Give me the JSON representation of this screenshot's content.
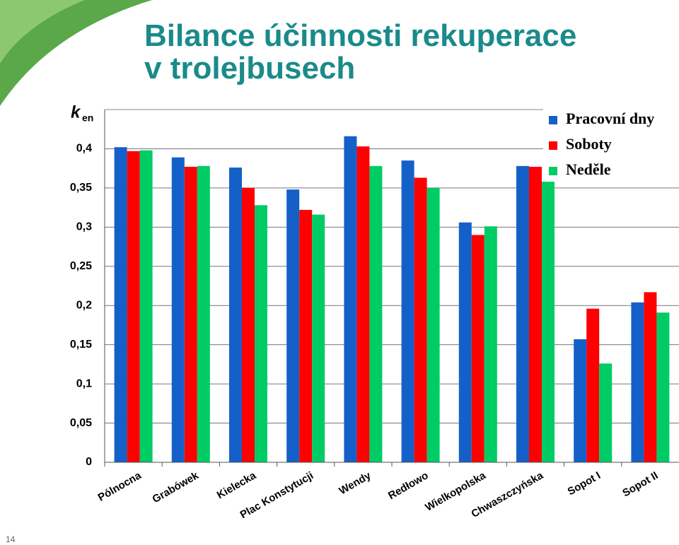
{
  "page_number": "14",
  "chart_data": {
    "type": "bar",
    "title": "Bilance účinnosti rekuperace v trolejbusech",
    "ylabel": "k",
    "ylabel_sub": "en",
    "categories": [
      "Pólnocna",
      "Grabówek",
      "Kielecka",
      "Plac Konstytucji",
      "Wendy",
      "Redłowo",
      "Wielkopolska",
      "Chwaszczyńska",
      "Sopot I",
      "Sopot II"
    ],
    "series": [
      {
        "name": "Pracovní dny",
        "color": "#1560c8",
        "values": [
          0.402,
          0.389,
          0.376,
          0.348,
          0.416,
          0.385,
          0.306,
          0.378,
          0.157,
          0.204
        ]
      },
      {
        "name": "Soboty",
        "color": "#ff0000",
        "values": [
          0.397,
          0.377,
          0.35,
          0.322,
          0.403,
          0.363,
          0.29,
          0.377,
          0.196,
          0.217
        ]
      },
      {
        "name": "Neděle",
        "color": "#00cc66",
        "values": [
          0.398,
          0.378,
          0.328,
          0.316,
          0.378,
          0.35,
          0.301,
          0.358,
          0.126,
          0.191
        ]
      }
    ],
    "ylim": [
      0,
      0.45
    ],
    "yticks": [
      0,
      {
        "value": 0.05,
        "label": "0,05"
      },
      {
        "value": 0.1,
        "label": "0,1"
      },
      {
        "value": 0.15,
        "label": "0,15"
      },
      {
        "value": 0.2,
        "label": "0,2"
      },
      {
        "value": 0.25,
        "label": "0,25"
      },
      {
        "value": 0.3,
        "label": "0,3"
      },
      {
        "value": 0.35,
        "label": "0,35"
      },
      {
        "value": 0.4,
        "label": "0,4"
      }
    ],
    "grid": true,
    "legend": "upper right"
  }
}
